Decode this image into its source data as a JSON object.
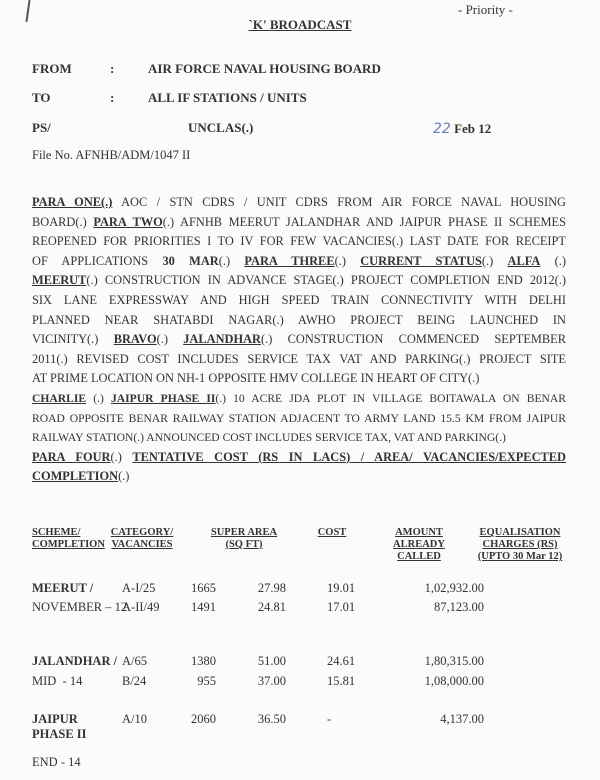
{
  "header": {
    "priority": "- Priority -",
    "title": "`K' BROADCAST",
    "from_label": "FROM",
    "from_value": "AIR FORCE NAVAL HOUSING BOARD",
    "to_label": "TO",
    "to_value": "ALL IF STATIONS / UNITS",
    "colon": ":",
    "ps_label": "PS/",
    "ps_value": "UNCLAS(.)",
    "date_handwritten": "22",
    "date_printed": "Feb 12",
    "file_no": "File No. AFNHB/ADM/1047 II"
  },
  "body_lines": [
    {
      "j": true,
      "segs": [
        {
          "t": "PARA ONE(.)",
          "s": "bu"
        },
        {
          "t": " AOC / STN CDRS / UNIT CDRS FROM AIR FORCE NAVAL HOUSING",
          "s": ""
        }
      ]
    },
    {
      "j": true,
      "segs": [
        {
          "t": "BOARD(.) ",
          "s": ""
        },
        {
          "t": "PARA TWO",
          "s": "bu"
        },
        {
          "t": "(.) AFNHB MEERUT JALANDHAR AND JAIPUR PHASE II SCHEMES",
          "s": ""
        }
      ]
    },
    {
      "j": true,
      "segs": [
        {
          "t": "REOPENED FOR PRIORITIES I TO IV FOR FEW VACANCIES(.) LAST DATE FOR RECEIPT",
          "s": ""
        }
      ]
    },
    {
      "j": true,
      "segs": [
        {
          "t": "OF APPLICATIONS ",
          "s": ""
        },
        {
          "t": "30 MAR",
          "s": "b"
        },
        {
          "t": "(.) ",
          "s": ""
        },
        {
          "t": "PARA THREE",
          "s": "bu"
        },
        {
          "t": "(.) ",
          "s": ""
        },
        {
          "t": "CURRENT STATUS",
          "s": "bu"
        },
        {
          "t": "(.) ",
          "s": ""
        },
        {
          "t": "ALFA",
          "s": "bu"
        },
        {
          "t": " (.)",
          "s": ""
        }
      ]
    },
    {
      "j": true,
      "segs": [
        {
          "t": "MEERUT",
          "s": "bu"
        },
        {
          "t": "(.) CONSTRUCTION IN ADVANCE STAGE(.) PROJECT COMPLETION END 2012(.)",
          "s": ""
        }
      ]
    },
    {
      "j": true,
      "segs": [
        {
          "t": "SIX LANE EXPRESSWAY AND HIGH SPEED TRAIN CONNECTIVITY WITH DELHI",
          "s": ""
        }
      ]
    },
    {
      "j": true,
      "segs": [
        {
          "t": "PLANNED NEAR SHATABDI NAGAR(.) AWHO PROJECT BEING LAUNCHED IN",
          "s": ""
        }
      ]
    },
    {
      "j": true,
      "segs": [
        {
          "t": "VICINITY(.) ",
          "s": ""
        },
        {
          "t": "BRAVO",
          "s": "bu"
        },
        {
          "t": "(.) ",
          "s": ""
        },
        {
          "t": "JALANDHAR",
          "s": "bu"
        },
        {
          "t": "(.) CONSTRUCTION COMMENCED SEPTEMBER",
          "s": ""
        }
      ]
    },
    {
      "j": true,
      "segs": [
        {
          "t": "2011(.) REVISED COST INCLUDES SERVICE TAX VAT AND PARKING(.) PROJECT SITE",
          "s": ""
        }
      ]
    },
    {
      "j": false,
      "segs": [
        {
          "t": "AT PRIME LOCATION ON NH-1 OPPOSITE HMV COLLEGE IN HEART OF CITY(.)",
          "s": ""
        }
      ]
    },
    {
      "j": true,
      "small": true,
      "segs": [
        {
          "t": "CHARLIE",
          "s": "bu"
        },
        {
          "t": " (.) ",
          "s": ""
        },
        {
          "t": "JAIPUR PHASE II",
          "s": "bu"
        },
        {
          "t": "(.) 10 ACRE JDA PLOT IN VILLAGE BOITAWALA ON BENAR",
          "s": ""
        }
      ]
    },
    {
      "j": true,
      "small": true,
      "segs": [
        {
          "t": "ROAD OPPOSITE BENAR RAILWAY STATION ADJACENT TO ARMY LAND 15.5 KM FROM JAIPUR",
          "s": ""
        }
      ]
    },
    {
      "j": false,
      "small": true,
      "segs": [
        {
          "t": "RAILWAY STATION(.)  ANNOUNCED COST INCLUDES SERVICE TAX, VAT AND PARKING(.)",
          "s": ""
        }
      ]
    },
    {
      "j": true,
      "segs": [
        {
          "t": "PARA FOUR",
          "s": "bu"
        },
        {
          "t": "(.) ",
          "s": ""
        },
        {
          "t": "TENTATIVE COST (RS IN LACS) / AREA/ VACANCIES/EXPECTED",
          "s": "bu"
        }
      ]
    },
    {
      "j": false,
      "segs": [
        {
          "t": "COMPLETION",
          "s": "bu"
        },
        {
          "t": "(.)",
          "s": ""
        }
      ]
    }
  ],
  "table": {
    "headers": [
      "SCHEME/\nCOMPLETION",
      "CATEGORY/\nVACANCIES",
      "SUPER AREA\n(SQ FT)",
      "COST",
      "AMOUNT\nALREADY\nCALLED",
      "EQUALISATION\nCHARGES (RS)\n(UPTO 30 Mar 12)"
    ],
    "rows": [
      [
        "MEERUT /",
        "A-I/25",
        "1665",
        "27.98",
        "19.01",
        "1,02,932.00"
      ],
      [
        "NOVEMBER – 12",
        "A-II/49",
        "1491",
        "24.81",
        "17.01",
        "87,123.00"
      ],
      [
        "JALANDHAR /",
        "A/65",
        "1380",
        "51.00",
        "24.61",
        "1,80,315.00"
      ],
      [
        "MID  - 14",
        "B/24",
        "955",
        "37.00",
        "15.81",
        "1,08,000.00"
      ],
      [
        "JAIPUR\nPHASE II",
        "A/10",
        "2060",
        "36.50",
        "-",
        "4,137.00"
      ],
      [
        "END - 14",
        "",
        "",
        "",
        "",
        ""
      ]
    ]
  }
}
